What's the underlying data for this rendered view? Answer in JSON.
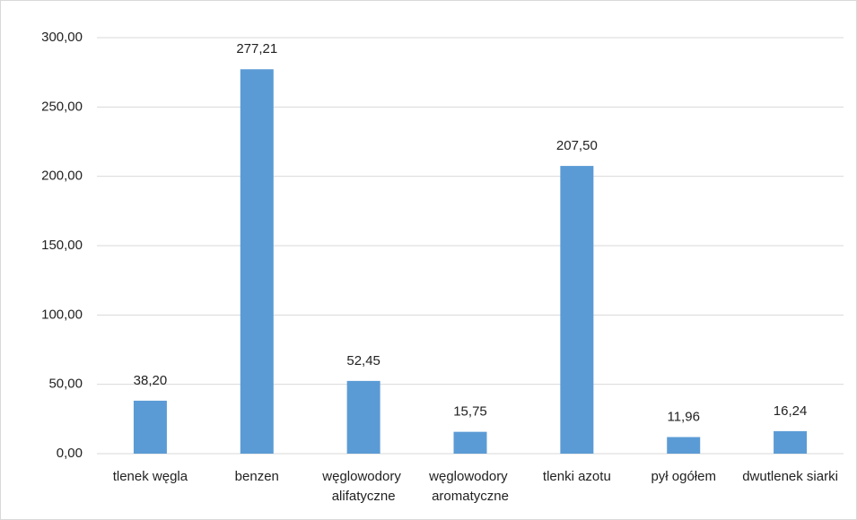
{
  "chart_data": {
    "type": "bar",
    "categories": [
      "tlenek węgla",
      "benzen",
      "węglowodory alifatyczne",
      "węglowodory aromatyczne",
      "tlenki azotu",
      "pył ogółem",
      "dwutlenek siarki"
    ],
    "values": [
      38.2,
      277.21,
      52.45,
      15.75,
      207.5,
      11.96,
      16.24
    ],
    "value_labels": [
      "38,20",
      "277,21",
      "52,45",
      "15,75",
      "207,50",
      "11,96",
      "16,24"
    ],
    "color": "#5b9bd5",
    "ylim": [
      0,
      300
    ],
    "yticks": [
      {
        "value": 0,
        "label": "0,00"
      },
      {
        "value": 50,
        "label": "50,00"
      },
      {
        "value": 100,
        "label": "100,00"
      },
      {
        "value": 150,
        "label": "150,00"
      },
      {
        "value": 200,
        "label": "200,00"
      },
      {
        "value": 250,
        "label": "250,00"
      },
      {
        "value": 300,
        "label": "300,00"
      }
    ],
    "grid": true
  }
}
